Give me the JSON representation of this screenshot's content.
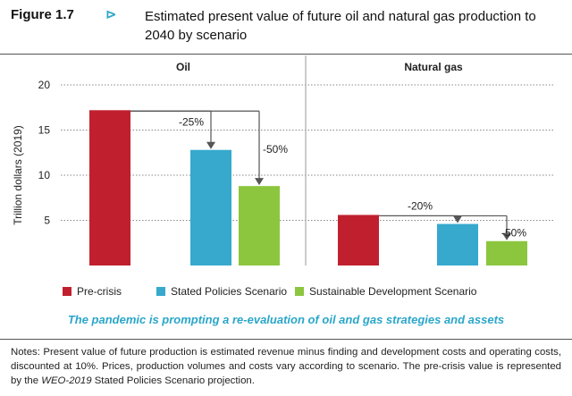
{
  "figure": {
    "number": "Figure 1.7",
    "arrow": "⊳",
    "title": "Estimated present value of future oil and natural gas production to 2040 by scenario"
  },
  "subtitle": "The pandemic is prompting a re-evaluation of oil and gas strategies and assets",
  "notes": {
    "part1": "Notes: Present value of future production is estimated revenue minus finding and development costs and operating costs, discounted at 10%. Prices, production volumes and costs vary according to scenario. The pre-crisis value is represented by the ",
    "emph": "WEO-2019",
    "part2": " Stated Policies Scenario projection."
  },
  "chart_data": {
    "type": "bar",
    "ylabel": "Trillion dollars (2019)",
    "ylim": [
      0,
      20
    ],
    "yticks": [
      5,
      10,
      15,
      20
    ],
    "grid": true,
    "legend_position": "bottom",
    "series": [
      {
        "name": "Pre-crisis",
        "color": "#c0202e"
      },
      {
        "name": "Stated Policies Scenario",
        "color": "#36a9cd"
      },
      {
        "name": "Sustainable Development Scenario",
        "color": "#8cc63f"
      }
    ],
    "panels": [
      {
        "title": "Oil",
        "values": [
          17.2,
          12.8,
          8.8
        ],
        "annotations": [
          {
            "label": "-25%",
            "from": 0,
            "to": 1
          },
          {
            "label": "-50%",
            "from": 0,
            "to": 2
          }
        ]
      },
      {
        "title": "Natural gas",
        "values": [
          5.6,
          4.6,
          2.7
        ],
        "annotations": [
          {
            "label": "-20%",
            "from": 0,
            "to": 1
          },
          {
            "label": "-50%",
            "from": 0,
            "to": 2
          }
        ]
      }
    ]
  }
}
